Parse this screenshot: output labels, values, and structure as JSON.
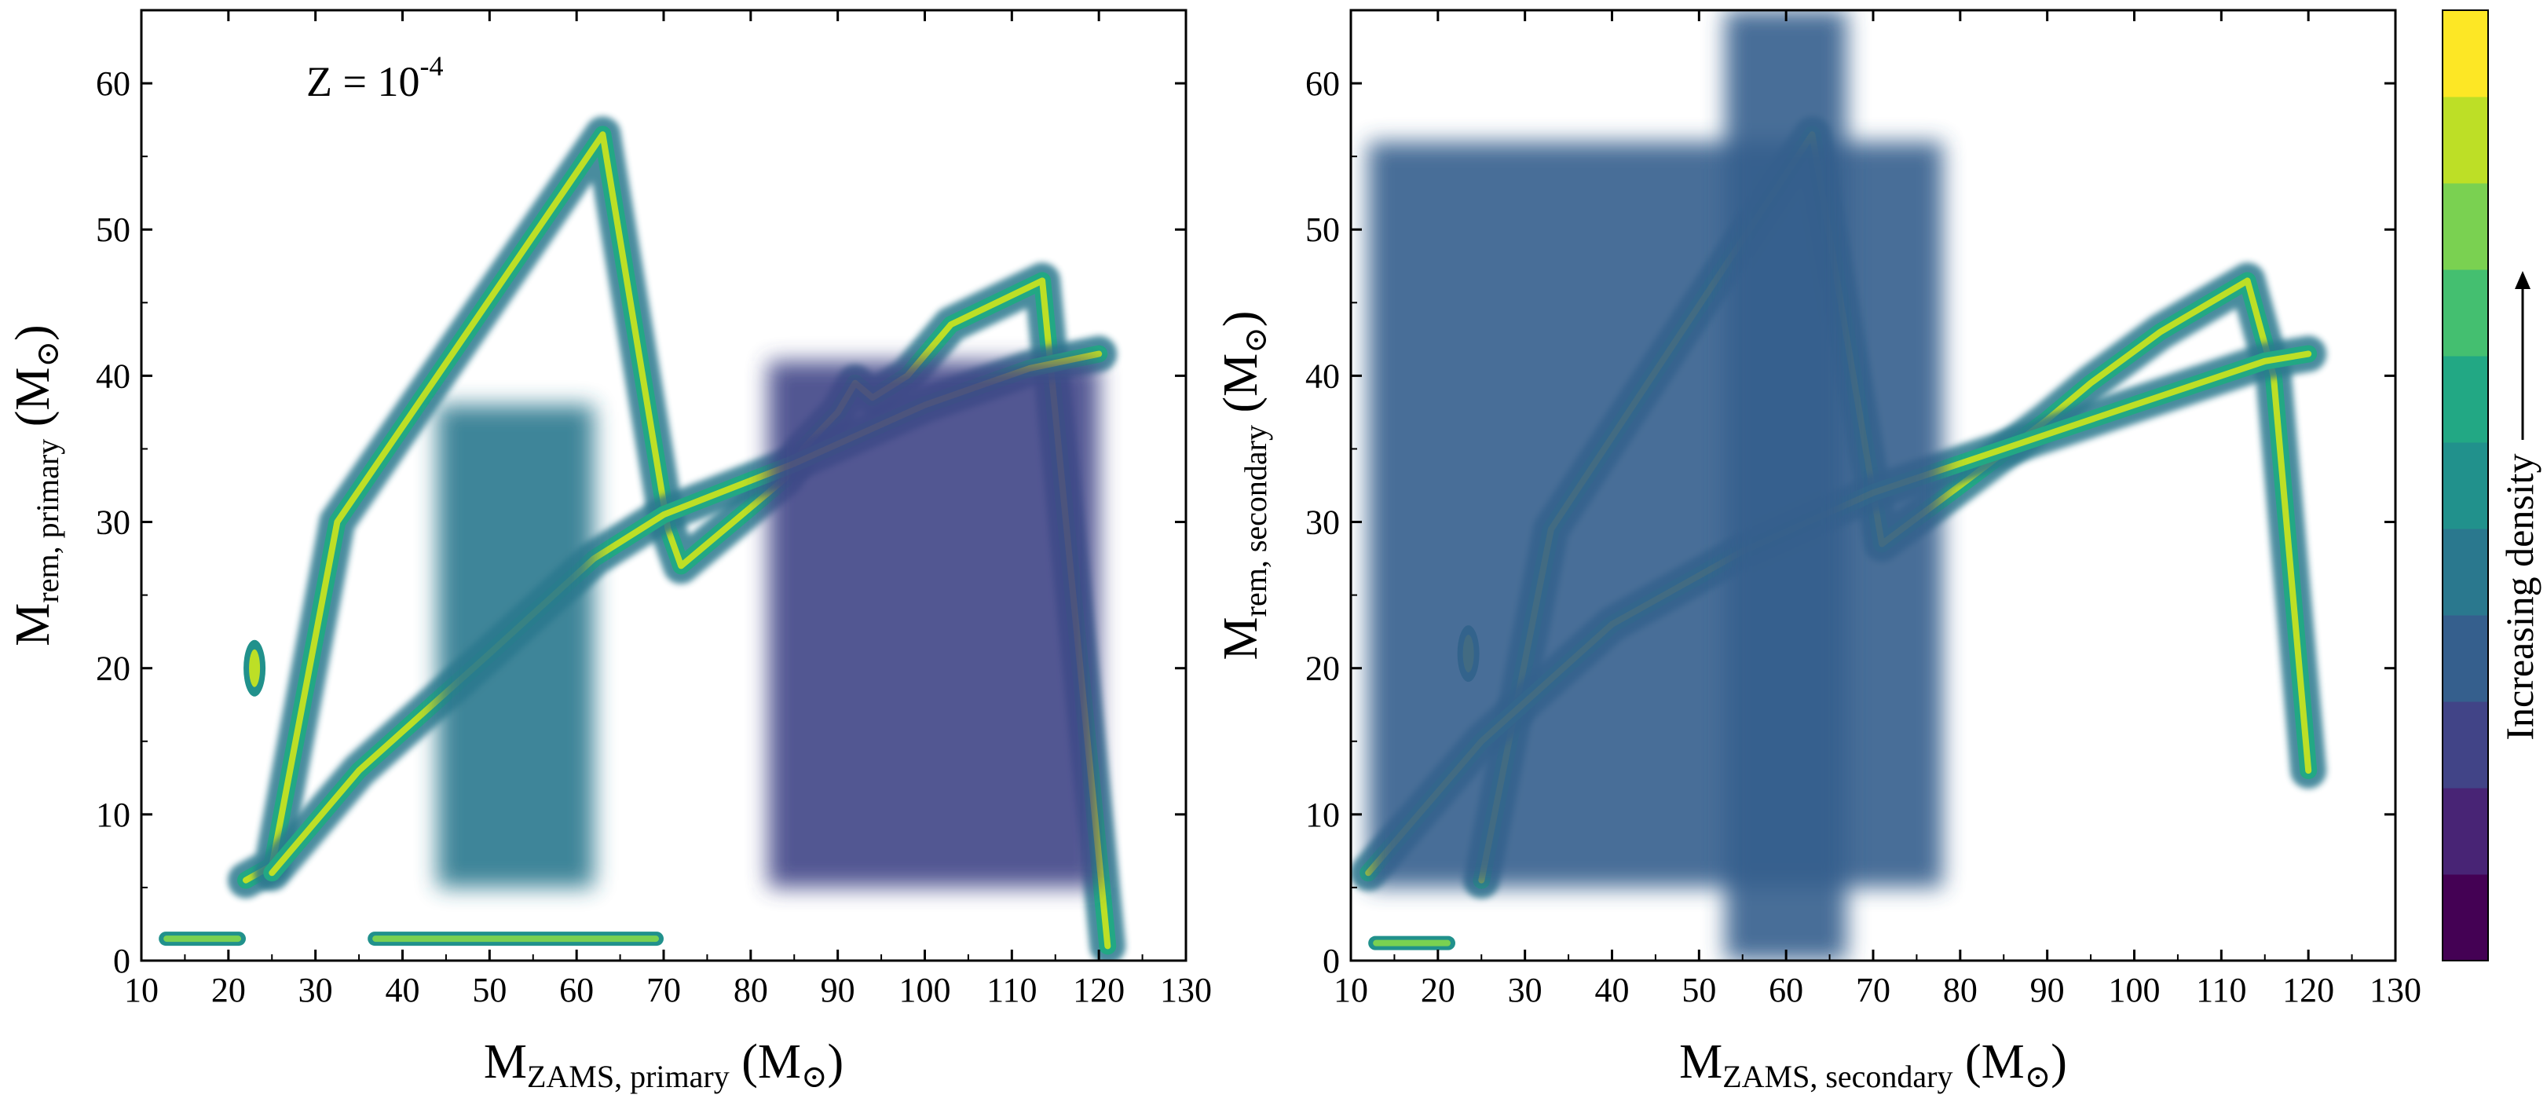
{
  "chart_data": [
    {
      "type": "heatmap",
      "panel": "left",
      "annotation": {
        "base": "Z = 10",
        "exp": "-4"
      },
      "xlabel": {
        "main": "M",
        "sub": "ZAMS, primary",
        "unit": "(M",
        "unit_close": ")"
      },
      "ylabel": {
        "main": "M",
        "sub": "rem, primary",
        "unit": "(M",
        "unit_close": ")"
      },
      "xlim": [
        10,
        130
      ],
      "ylim": [
        0,
        65
      ],
      "xticks": [
        "10",
        "20",
        "30",
        "40",
        "50",
        "60",
        "70",
        "80",
        "90",
        "100",
        "110",
        "120",
        "130"
      ],
      "yticks": [
        "0",
        "10",
        "20",
        "30",
        "40",
        "50",
        "60"
      ],
      "features": [
        {
          "kind": "ridge",
          "x": [
            22,
            25,
            32.5,
            63,
            70.5,
            72,
            84,
            86,
            90,
            92,
            94,
            98,
            103,
            113.5,
            121
          ],
          "y": [
            5.5,
            6.5,
            30,
            56.5,
            29.5,
            27,
            33,
            35,
            37.5,
            39.5,
            38.5,
            40,
            43.5,
            46.5,
            1
          ]
        },
        {
          "kind": "ridge",
          "x": [
            25,
            35,
            50,
            62,
            70,
            85,
            100,
            112,
            120
          ],
          "y": [
            6,
            13,
            21,
            27.5,
            30.5,
            34,
            38,
            40.5,
            41.5
          ]
        },
        {
          "kind": "blob",
          "x": 23,
          "y": 20,
          "intensity": 0.85
        },
        {
          "kind": "band",
          "x": [
            12,
            22
          ],
          "y": 1.5
        },
        {
          "kind": "band",
          "x": [
            36,
            70
          ],
          "y": 1.5
        },
        {
          "kind": "region",
          "x": [
            44,
            62
          ],
          "y": [
            5,
            38
          ],
          "intensity": 0.35
        },
        {
          "kind": "region",
          "x": [
            82,
            120
          ],
          "y": [
            5,
            41
          ],
          "intensity": 0.2
        }
      ]
    },
    {
      "type": "heatmap",
      "panel": "right",
      "xlabel": {
        "main": "M",
        "sub": "ZAMS, secondary",
        "unit": "(M",
        "unit_close": ")"
      },
      "ylabel": {
        "main": "M",
        "sub": "rem, secondary",
        "unit": "(M",
        "unit_close": ")"
      },
      "xlim": [
        10,
        130
      ],
      "ylim": [
        0,
        65
      ],
      "xticks": [
        "10",
        "20",
        "30",
        "40",
        "50",
        "60",
        "70",
        "80",
        "90",
        "100",
        "110",
        "120",
        "130"
      ],
      "yticks": [
        "0",
        "10",
        "20",
        "30",
        "40",
        "50",
        "60"
      ],
      "features": [
        {
          "kind": "ridge",
          "x": [
            25,
            33,
            63,
            71,
            80,
            90,
            95,
            103,
            113,
            116,
            120
          ],
          "y": [
            5.5,
            29.5,
            56.5,
            28.5,
            32.5,
            37,
            39.5,
            43,
            46.5,
            40,
            13
          ]
        },
        {
          "kind": "ridge",
          "x": [
            12,
            25,
            40,
            55,
            70,
            85,
            100,
            115,
            120
          ],
          "y": [
            6,
            15,
            23,
            28,
            32,
            35,
            38,
            41,
            41.5
          ]
        },
        {
          "kind": "blob",
          "x": 23.5,
          "y": 21,
          "intensity": 0.85
        },
        {
          "kind": "band",
          "x": [
            12,
            22
          ],
          "y": 1.2
        },
        {
          "kind": "region",
          "x": [
            12,
            78
          ],
          "y": [
            5,
            56
          ],
          "intensity": 0.3
        },
        {
          "kind": "region",
          "x": [
            53,
            67
          ],
          "y": [
            0,
            65
          ],
          "intensity": 0.3
        }
      ]
    }
  ],
  "colorbar": {
    "label": "Increasing density",
    "levels": 22
  }
}
